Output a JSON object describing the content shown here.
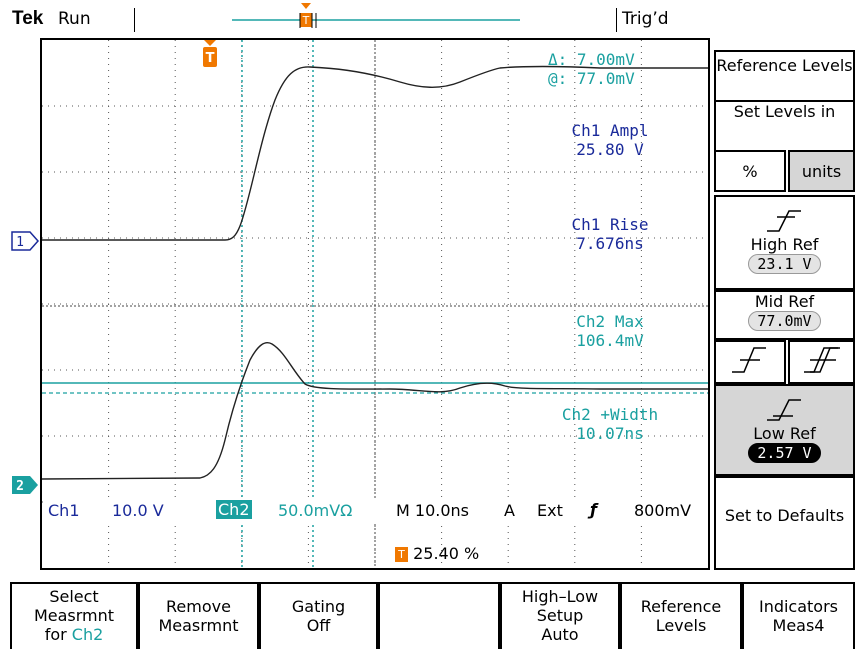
{
  "status_bar": {
    "brand": "Tek",
    "run_state": "Run",
    "trigger_state": "Trig’d"
  },
  "cursor_readout": {
    "delta": "Δ:   7.00mV",
    "at": "@:   77.0mV"
  },
  "measurements": [
    {
      "name": "Ch1 Ampl",
      "value": "25.80 V",
      "color": "#1a2a9a"
    },
    {
      "name": "Ch1 Rise",
      "value": "7.676ns",
      "color": "#1a2a9a"
    },
    {
      "name": "Ch2 Max",
      "value": "106.4mV",
      "color": "#1aa0a0"
    },
    {
      "name": "Ch2 +Width",
      "value": "10.07ns",
      "color": "#1aa0a0"
    }
  ],
  "channel_markers": {
    "ch1": "1",
    "ch2": "2",
    "trigger": "T"
  },
  "scale_bar": {
    "ch1_label": "Ch1",
    "ch1_scale": "10.0 V",
    "ch2_label": "Ch2",
    "ch2_scale": "50.0mVΩ",
    "timebase": "M 10.0ns",
    "trigger_mode": "A",
    "trigger_source": "Ext",
    "trigger_slope": "ƒ",
    "trigger_level": "800mV",
    "trigger_position": "25.40 %"
  },
  "side_menu": {
    "title": "Reference Levels",
    "set_levels_label": "Set Levels in",
    "unit_percent": "%",
    "unit_units": "units",
    "high_ref_label": "High Ref",
    "high_ref_value": "23.1 V",
    "mid_ref_label": "Mid Ref",
    "mid_ref_value": "77.0mV",
    "low_ref_label": "Low Ref",
    "low_ref_value": "2.57 V",
    "defaults_label": "Set to Defaults"
  },
  "bottom_menu": [
    {
      "line1": "Select",
      "line2": "Measrmnt",
      "line3a": "for ",
      "line3b": "Ch2"
    },
    {
      "line1": "Remove",
      "line2": "Measrmnt"
    },
    {
      "line1": "Gating",
      "line2": "Off"
    },
    {
      "line1": ""
    },
    {
      "line1": "High–Low",
      "line2": "Setup",
      "line3": "Auto"
    },
    {
      "line1": "Reference",
      "line2": "Levels"
    },
    {
      "line1": "Indicators",
      "line2": "Meas4"
    }
  ],
  "colors": {
    "ch1": "#1a2a9a",
    "ch2": "#1aa0a0",
    "trigger": "#f07800",
    "menu_selected": "#d6d6d6"
  }
}
